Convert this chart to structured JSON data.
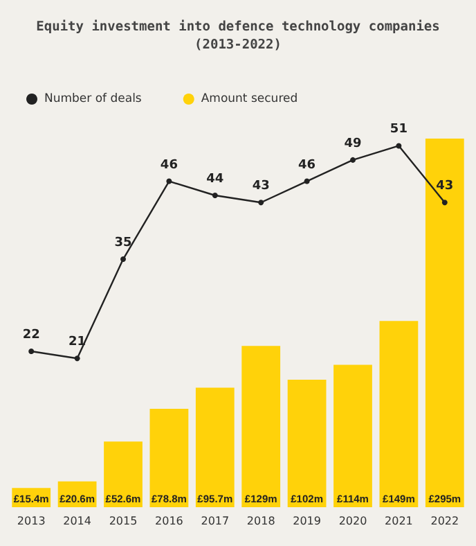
{
  "chart_data": {
    "type": "bar",
    "title": "Equity investment into defence technology companies\n(2013-2022)",
    "categories": [
      "2013",
      "2014",
      "2015",
      "2016",
      "2017",
      "2018",
      "2019",
      "2020",
      "2021",
      "2022"
    ],
    "legend": "top left",
    "marker": "circle",
    "grid": false,
    "series": [
      {
        "name": "Number of deals",
        "type": "line",
        "axis": "y2",
        "color": "#222222",
        "values": [
          22,
          21,
          35,
          46,
          44,
          43,
          46,
          49,
          51,
          43
        ],
        "value_labels": [
          "22",
          "21",
          "35",
          "46",
          "44",
          "43",
          "46",
          "49",
          "51",
          "43"
        ]
      },
      {
        "name": "Amount secured",
        "color": "#ffd20a",
        "values": [
          15.4,
          20.6,
          52.6,
          78.8,
          95.7,
          129,
          102,
          114,
          149,
          295
        ],
        "value_labels": [
          "£15.4m",
          "£20.6m",
          "£52.6m",
          "£78.8m",
          "£95.7m",
          "£129m",
          "£102m",
          "£114m",
          "£149m",
          "£295m"
        ]
      }
    ]
  }
}
